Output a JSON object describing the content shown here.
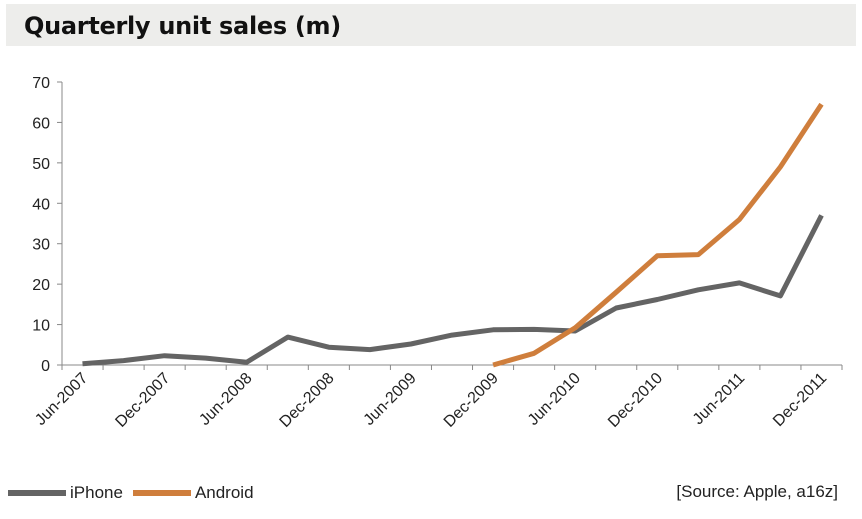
{
  "title": "Quarterly unit sales (m)",
  "source": "[Source: Apple, a16z]",
  "colors": {
    "iPhone": "#646464",
    "Android": "#cf7e3c",
    "axis": "#888888",
    "title_bg": "#ededeb"
  },
  "chart_data": {
    "type": "line",
    "title": "Quarterly unit sales (m)",
    "xlabel": "",
    "ylabel": "",
    "ylim": [
      0,
      70
    ],
    "yticks": [
      0,
      10,
      20,
      30,
      40,
      50,
      60,
      70
    ],
    "x": [
      "Jun-2007",
      "Sep-2007",
      "Dec-2007",
      "Mar-2008",
      "Jun-2008",
      "Sep-2008",
      "Dec-2008",
      "Mar-2009",
      "Jun-2009",
      "Sep-2009",
      "Dec-2009",
      "Mar-2010",
      "Jun-2010",
      "Sep-2010",
      "Dec-2010",
      "Mar-2011",
      "Jun-2011",
      "Sep-2011",
      "Dec-2011"
    ],
    "xtick_labels": [
      "Jun-2007",
      "Dec-2007",
      "Jun-2008",
      "Dec-2008",
      "Jun-2009",
      "Dec-2009",
      "Jun-2010",
      "Dec-2010",
      "Jun-2011",
      "Dec-2011"
    ],
    "legend": "bottom-left",
    "grid": false,
    "series": [
      {
        "name": "iPhone",
        "values": [
          0.3,
          1.1,
          2.3,
          1.7,
          0.7,
          6.9,
          4.4,
          3.8,
          5.2,
          7.4,
          8.7,
          8.8,
          8.4,
          14.1,
          16.2,
          18.6,
          20.3,
          17.1,
          37.0
        ]
      },
      {
        "name": "Android",
        "values": [
          null,
          null,
          null,
          null,
          null,
          null,
          null,
          null,
          null,
          null,
          0.0,
          2.9,
          9.2,
          18.0,
          27.0,
          27.3,
          36.0,
          49.0,
          64.5
        ]
      }
    ]
  }
}
